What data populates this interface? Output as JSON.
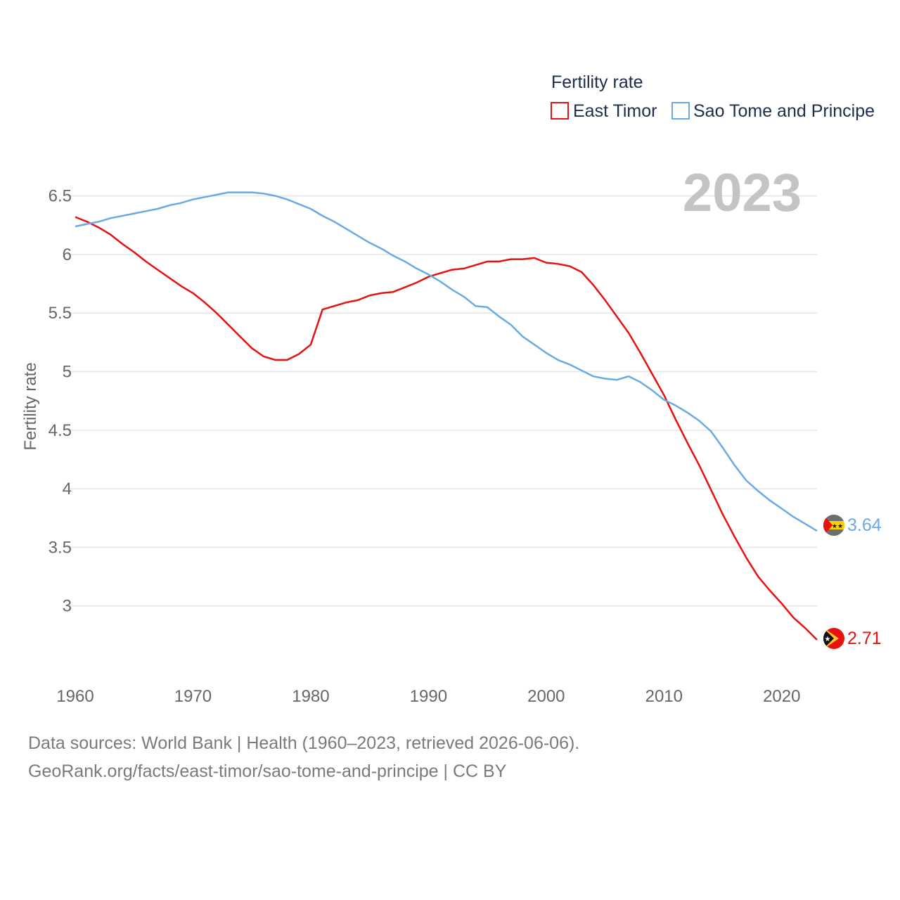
{
  "chart_data": {
    "type": "line",
    "legend_title": "Fertility rate",
    "ylabel": "Fertility rate",
    "year_label": "2023",
    "x_range": [
      1960,
      2023
    ],
    "xlim": [
      1960,
      2023
    ],
    "ylim": [
      2.5,
      6.75
    ],
    "x_ticks": [
      1960,
      1970,
      1980,
      1990,
      2000,
      2010,
      2020
    ],
    "y_ticks": [
      3,
      3.5,
      4,
      4.5,
      5,
      5.5,
      6,
      6.5
    ],
    "y_tick_labels": [
      "3",
      "3.5",
      "4",
      "4.5",
      "5",
      "5.5",
      "6",
      "6.5"
    ],
    "legend_position": "top-right",
    "grid": true,
    "series": [
      {
        "name": "East Timor",
        "color": "#e8110f",
        "end_label": "2.71",
        "points": [
          [
            1960,
            6.32
          ],
          [
            1961,
            6.28
          ],
          [
            1962,
            6.23
          ],
          [
            1963,
            6.17
          ],
          [
            1964,
            6.09
          ],
          [
            1965,
            6.02
          ],
          [
            1966,
            5.94
          ],
          [
            1967,
            5.87
          ],
          [
            1968,
            5.8
          ],
          [
            1969,
            5.73
          ],
          [
            1970,
            5.67
          ],
          [
            1971,
            5.59
          ],
          [
            1972,
            5.5
          ],
          [
            1973,
            5.4
          ],
          [
            1974,
            5.3
          ],
          [
            1975,
            5.2
          ],
          [
            1976,
            5.13
          ],
          [
            1977,
            5.1
          ],
          [
            1978,
            5.1
          ],
          [
            1979,
            5.15
          ],
          [
            1980,
            5.23
          ],
          [
            1981,
            5.53
          ],
          [
            1982,
            5.56
          ],
          [
            1983,
            5.59
          ],
          [
            1984,
            5.61
          ],
          [
            1985,
            5.65
          ],
          [
            1986,
            5.67
          ],
          [
            1987,
            5.68
          ],
          [
            1988,
            5.72
          ],
          [
            1989,
            5.76
          ],
          [
            1990,
            5.81
          ],
          [
            1991,
            5.84
          ],
          [
            1992,
            5.87
          ],
          [
            1993,
            5.88
          ],
          [
            1994,
            5.91
          ],
          [
            1995,
            5.94
          ],
          [
            1996,
            5.94
          ],
          [
            1997,
            5.96
          ],
          [
            1998,
            5.96
          ],
          [
            1999,
            5.97
          ],
          [
            2000,
            5.93
          ],
          [
            2001,
            5.92
          ],
          [
            2002,
            5.9
          ],
          [
            2003,
            5.85
          ],
          [
            2004,
            5.74
          ],
          [
            2005,
            5.61
          ],
          [
            2006,
            5.47
          ],
          [
            2007,
            5.33
          ],
          [
            2008,
            5.16
          ],
          [
            2009,
            4.98
          ],
          [
            2010,
            4.8
          ],
          [
            2011,
            4.59
          ],
          [
            2012,
            4.39
          ],
          [
            2013,
            4.2
          ],
          [
            2014,
            3.99
          ],
          [
            2015,
            3.78
          ],
          [
            2016,
            3.59
          ],
          [
            2017,
            3.41
          ],
          [
            2018,
            3.25
          ],
          [
            2019,
            3.13
          ],
          [
            2020,
            3.02
          ],
          [
            2021,
            2.9
          ],
          [
            2022,
            2.81
          ],
          [
            2023,
            2.71
          ]
        ]
      },
      {
        "name": "Sao Tome and Principe",
        "color": "#6aaae4",
        "end_label": "3.64",
        "points": [
          [
            1960,
            6.24
          ],
          [
            1961,
            6.26
          ],
          [
            1962,
            6.28
          ],
          [
            1963,
            6.31
          ],
          [
            1964,
            6.33
          ],
          [
            1965,
            6.35
          ],
          [
            1966,
            6.37
          ],
          [
            1967,
            6.39
          ],
          [
            1968,
            6.42
          ],
          [
            1969,
            6.44
          ],
          [
            1970,
            6.47
          ],
          [
            1971,
            6.49
          ],
          [
            1972,
            6.51
          ],
          [
            1973,
            6.53
          ],
          [
            1974,
            6.53
          ],
          [
            1975,
            6.53
          ],
          [
            1976,
            6.52
          ],
          [
            1977,
            6.5
          ],
          [
            1978,
            6.47
          ],
          [
            1979,
            6.43
          ],
          [
            1980,
            6.39
          ],
          [
            1981,
            6.33
          ],
          [
            1982,
            6.28
          ],
          [
            1983,
            6.22
          ],
          [
            1984,
            6.16
          ],
          [
            1985,
            6.1
          ],
          [
            1986,
            6.05
          ],
          [
            1987,
            5.99
          ],
          [
            1988,
            5.94
          ],
          [
            1989,
            5.88
          ],
          [
            1990,
            5.83
          ],
          [
            1991,
            5.77
          ],
          [
            1992,
            5.7
          ],
          [
            1993,
            5.64
          ],
          [
            1994,
            5.56
          ],
          [
            1995,
            5.55
          ],
          [
            1996,
            5.47
          ],
          [
            1997,
            5.4
          ],
          [
            1998,
            5.3
          ],
          [
            1999,
            5.23
          ],
          [
            2000,
            5.16
          ],
          [
            2001,
            5.1
          ],
          [
            2002,
            5.06
          ],
          [
            2003,
            5.01
          ],
          [
            2004,
            4.96
          ],
          [
            2005,
            4.94
          ],
          [
            2006,
            4.93
          ],
          [
            2007,
            4.96
          ],
          [
            2008,
            4.91
          ],
          [
            2009,
            4.84
          ],
          [
            2010,
            4.76
          ],
          [
            2011,
            4.71
          ],
          [
            2012,
            4.65
          ],
          [
            2013,
            4.58
          ],
          [
            2014,
            4.49
          ],
          [
            2015,
            4.35
          ],
          [
            2016,
            4.2
          ],
          [
            2017,
            4.07
          ],
          [
            2018,
            3.98
          ],
          [
            2019,
            3.9
          ],
          [
            2020,
            3.83
          ],
          [
            2021,
            3.76
          ],
          [
            2022,
            3.7
          ],
          [
            2023,
            3.64
          ]
        ]
      }
    ]
  },
  "footer": {
    "line1": "Data sources: World Bank | Health (1960–2023, retrieved 2026-06-06).",
    "line2": "GeoRank.org/facts/east-timor/sao-tome-and-principe | CC BY"
  }
}
